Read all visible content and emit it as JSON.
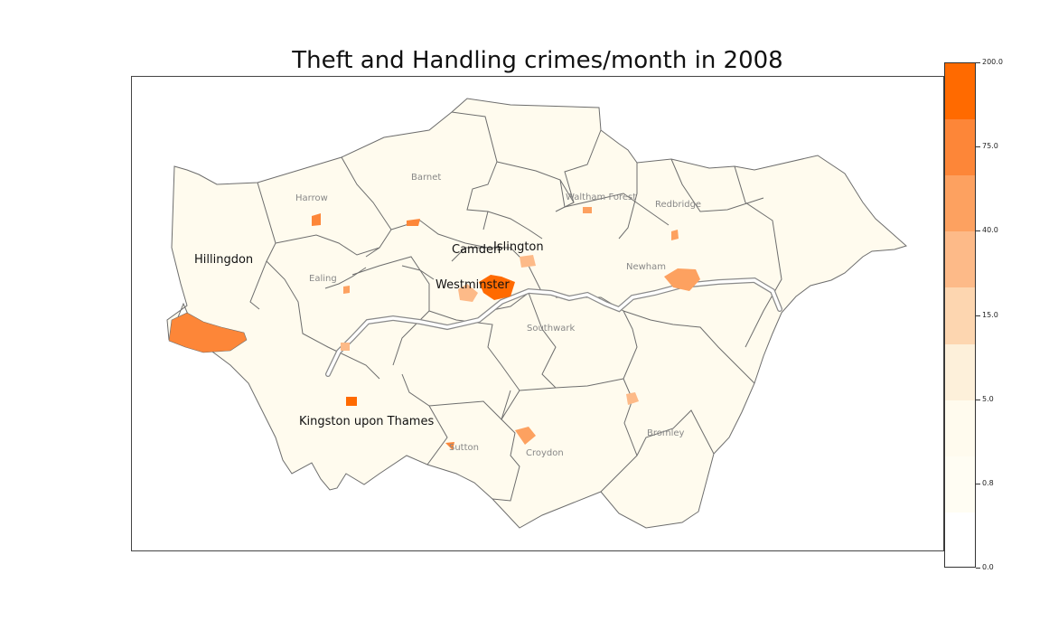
{
  "title": "Theft and Handling crimes/month in 2008",
  "colorbar": {
    "ticks": [
      "200.0",
      "75.0",
      "40.0",
      "15.0",
      "5.0",
      "0.8",
      "0.0"
    ],
    "colors": [
      "#ff6a00",
      "#fd8638",
      "#fda160",
      "#fdba88",
      "#fdd6b0",
      "#fdf0da",
      "#fffbee",
      "#fffdf3",
      "#ffffff"
    ]
  },
  "borough_labels": {
    "major": [
      "Hillingdon",
      "Camden",
      "Islington",
      "Westminster",
      "Kingston upon Thames"
    ],
    "minor": [
      "Barnet",
      "Harrow",
      "Waltham Forest",
      "Redbridge",
      "Ealing",
      "Newham",
      "Southwark",
      "Bromley",
      "Sutton",
      "Croydon"
    ]
  },
  "colors": {
    "land": "#fffbee",
    "border": "#6d6d6d",
    "river": "#ffffff",
    "hot": "#ff6a00",
    "high": "#fd8638",
    "mid": "#fdba88",
    "low": "#fdd6b0"
  }
}
